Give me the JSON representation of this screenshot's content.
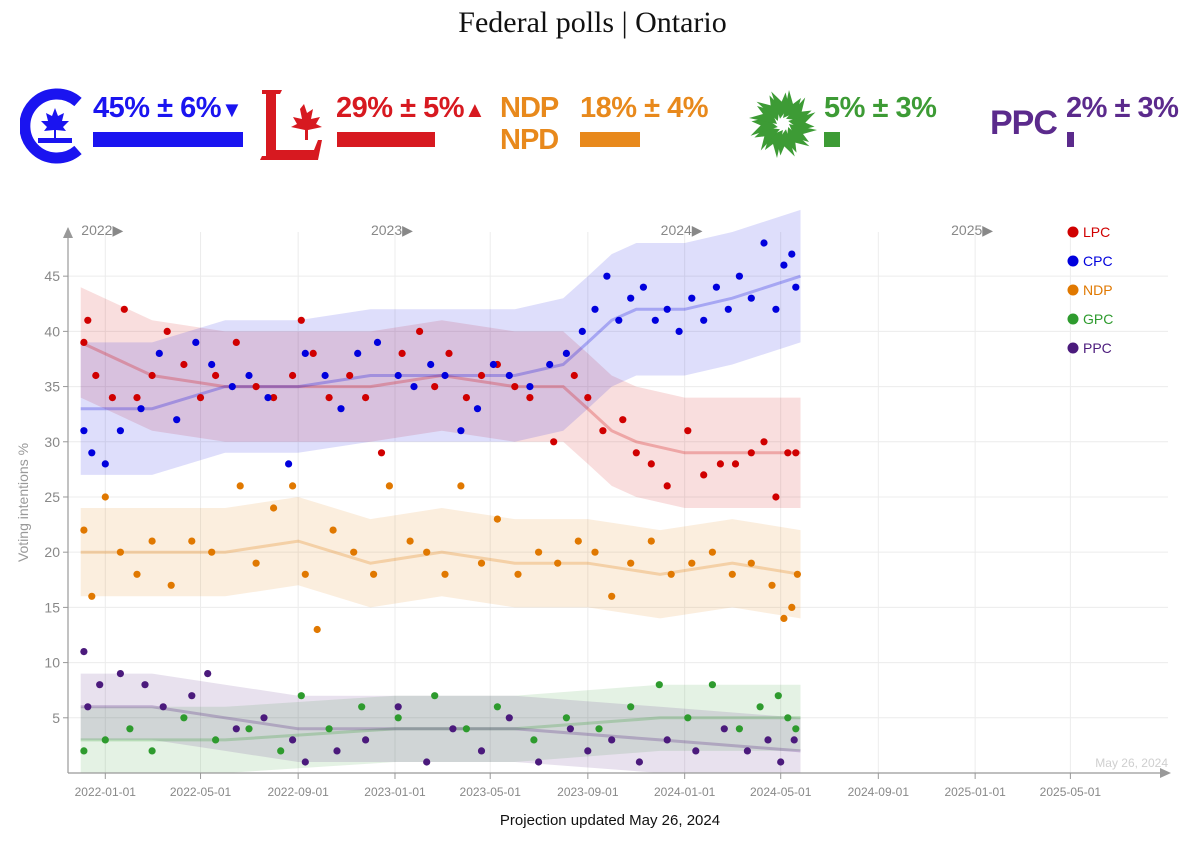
{
  "title": "Federal polls | Ontario",
  "parties": [
    {
      "id": "cpc",
      "label": "45% ± 6%",
      "arrow": "▼",
      "color": "#1a14f0",
      "share": 45
    },
    {
      "id": "lpc",
      "label": "29% ± 5%",
      "arrow": "▲",
      "color": "#d71920",
      "share": 29
    },
    {
      "id": "ndp",
      "label": "18% ± 4%",
      "arrow": "",
      "color": "#e8891c",
      "share": 18,
      "logo_line1": "NDP",
      "logo_line2": "NPD"
    },
    {
      "id": "gpc",
      "label": "5% ± 3%",
      "arrow": "",
      "color": "#3d9b35",
      "share": 5
    },
    {
      "id": "ppc",
      "label": "2% ± 3%",
      "arrow": "",
      "color": "#5b2a8c",
      "share": 2,
      "logo_text": "PPC"
    }
  ],
  "footer": "Projection updated May 26, 2024",
  "chart_data": {
    "type": "scatter",
    "title": "Federal polls | Ontario",
    "ylabel": "Voting intentions %",
    "xlim": [
      "2021-11-15",
      "2025-09-01"
    ],
    "ylim": [
      0,
      49
    ],
    "y_ticks": [
      5,
      10,
      15,
      20,
      25,
      30,
      35,
      40,
      45
    ],
    "x_ticks": [
      "2022-01-01",
      "2022-05-01",
      "2022-09-01",
      "2023-01-01",
      "2023-05-01",
      "2023-09-01",
      "2024-01-01",
      "2024-05-01",
      "2024-09-01",
      "2025-01-01",
      "2025-05-01"
    ],
    "year_labels": [
      {
        "label": "2022",
        "date": "2022-01-01"
      },
      {
        "label": "2023",
        "date": "2023-01-01"
      },
      {
        "label": "2024",
        "date": "2024-01-01"
      },
      {
        "label": "2025",
        "date": "2025-01-01"
      }
    ],
    "watermark": "May 26, 2024",
    "legend_position": "top-right",
    "series": [
      {
        "name": "LPC",
        "color": "#d00000",
        "trend": [
          [
            "2021-12-01",
            39
          ],
          [
            "2022-03-01",
            36
          ],
          [
            "2022-06-01",
            35
          ],
          [
            "2022-09-01",
            35
          ],
          [
            "2022-12-01",
            35
          ],
          [
            "2023-03-01",
            36
          ],
          [
            "2023-06-01",
            35
          ],
          [
            "2023-08-01",
            35
          ],
          [
            "2023-09-01",
            33
          ],
          [
            "2023-10-01",
            31
          ],
          [
            "2023-11-01",
            30
          ],
          [
            "2024-01-01",
            29
          ],
          [
            "2024-03-01",
            29
          ],
          [
            "2024-05-26",
            29
          ]
        ],
        "band": 5,
        "points": [
          [
            "2021-12-05",
            39
          ],
          [
            "2021-12-10",
            41
          ],
          [
            "2021-12-20",
            36
          ],
          [
            "2022-01-10",
            34
          ],
          [
            "2022-01-25",
            42
          ],
          [
            "2022-02-10",
            34
          ],
          [
            "2022-03-01",
            36
          ],
          [
            "2022-03-20",
            40
          ],
          [
            "2022-04-10",
            37
          ],
          [
            "2022-05-01",
            34
          ],
          [
            "2022-05-20",
            36
          ],
          [
            "2022-06-15",
            39
          ],
          [
            "2022-07-10",
            35
          ],
          [
            "2022-08-01",
            34
          ],
          [
            "2022-08-25",
            36
          ],
          [
            "2022-09-05",
            41
          ],
          [
            "2022-09-20",
            38
          ],
          [
            "2022-10-10",
            34
          ],
          [
            "2022-11-05",
            36
          ],
          [
            "2022-11-25",
            34
          ],
          [
            "2022-12-15",
            29
          ],
          [
            "2023-01-10",
            38
          ],
          [
            "2023-02-01",
            40
          ],
          [
            "2023-02-20",
            35
          ],
          [
            "2023-03-10",
            38
          ],
          [
            "2023-04-01",
            34
          ],
          [
            "2023-04-20",
            36
          ],
          [
            "2023-05-10",
            37
          ],
          [
            "2023-06-01",
            35
          ],
          [
            "2023-06-20",
            34
          ],
          [
            "2023-07-20",
            30
          ],
          [
            "2023-08-15",
            36
          ],
          [
            "2023-09-01",
            34
          ],
          [
            "2023-09-20",
            31
          ],
          [
            "2023-10-15",
            32
          ],
          [
            "2023-11-01",
            29
          ],
          [
            "2023-11-20",
            28
          ],
          [
            "2023-12-10",
            26
          ],
          [
            "2024-01-05",
            31
          ],
          [
            "2024-01-25",
            27
          ],
          [
            "2024-02-15",
            28
          ],
          [
            "2024-03-05",
            28
          ],
          [
            "2024-03-25",
            29
          ],
          [
            "2024-04-10",
            30
          ],
          [
            "2024-04-25",
            25
          ],
          [
            "2024-05-10",
            29
          ],
          [
            "2024-05-20",
            29
          ]
        ]
      },
      {
        "name": "CPC",
        "color": "#0000dd",
        "trend": [
          [
            "2021-12-01",
            33
          ],
          [
            "2022-03-01",
            33
          ],
          [
            "2022-06-01",
            35
          ],
          [
            "2022-09-01",
            35
          ],
          [
            "2022-12-01",
            36
          ],
          [
            "2023-03-01",
            36
          ],
          [
            "2023-06-01",
            36
          ],
          [
            "2023-08-01",
            37
          ],
          [
            "2023-09-01",
            39
          ],
          [
            "2023-10-01",
            41
          ],
          [
            "2023-11-01",
            42
          ],
          [
            "2024-01-01",
            42
          ],
          [
            "2024-03-01",
            43
          ],
          [
            "2024-05-26",
            45
          ]
        ],
        "band": 6,
        "points": [
          [
            "2021-12-05",
            31
          ],
          [
            "2021-12-15",
            29
          ],
          [
            "2022-01-01",
            28
          ],
          [
            "2022-01-20",
            31
          ],
          [
            "2022-02-15",
            33
          ],
          [
            "2022-03-10",
            38
          ],
          [
            "2022-04-01",
            32
          ],
          [
            "2022-04-25",
            39
          ],
          [
            "2022-05-15",
            37
          ],
          [
            "2022-06-10",
            35
          ],
          [
            "2022-07-01",
            36
          ],
          [
            "2022-07-25",
            34
          ],
          [
            "2022-08-20",
            28
          ],
          [
            "2022-09-10",
            38
          ],
          [
            "2022-10-05",
            36
          ],
          [
            "2022-10-25",
            33
          ],
          [
            "2022-11-15",
            38
          ],
          [
            "2022-12-10",
            39
          ],
          [
            "2023-01-05",
            36
          ],
          [
            "2023-01-25",
            35
          ],
          [
            "2023-02-15",
            37
          ],
          [
            "2023-03-05",
            36
          ],
          [
            "2023-03-25",
            31
          ],
          [
            "2023-04-15",
            33
          ],
          [
            "2023-05-05",
            37
          ],
          [
            "2023-05-25",
            36
          ],
          [
            "2023-06-20",
            35
          ],
          [
            "2023-07-15",
            37
          ],
          [
            "2023-08-05",
            38
          ],
          [
            "2023-08-25",
            40
          ],
          [
            "2023-09-10",
            42
          ],
          [
            "2023-09-25",
            45
          ],
          [
            "2023-10-10",
            41
          ],
          [
            "2023-10-25",
            43
          ],
          [
            "2023-11-10",
            44
          ],
          [
            "2023-11-25",
            41
          ],
          [
            "2023-12-10",
            42
          ],
          [
            "2023-12-25",
            40
          ],
          [
            "2024-01-10",
            43
          ],
          [
            "2024-01-25",
            41
          ],
          [
            "2024-02-10",
            44
          ],
          [
            "2024-02-25",
            42
          ],
          [
            "2024-03-10",
            45
          ],
          [
            "2024-03-25",
            43
          ],
          [
            "2024-04-10",
            48
          ],
          [
            "2024-04-25",
            42
          ],
          [
            "2024-05-05",
            46
          ],
          [
            "2024-05-15",
            47
          ],
          [
            "2024-05-20",
            44
          ]
        ]
      },
      {
        "name": "NDP",
        "color": "#e07800",
        "trend": [
          [
            "2021-12-01",
            20
          ],
          [
            "2022-03-01",
            20
          ],
          [
            "2022-06-01",
            20
          ],
          [
            "2022-09-01",
            21
          ],
          [
            "2022-12-01",
            19
          ],
          [
            "2023-03-01",
            20
          ],
          [
            "2023-06-01",
            19
          ],
          [
            "2023-09-01",
            19
          ],
          [
            "2023-12-01",
            18
          ],
          [
            "2024-03-01",
            19
          ],
          [
            "2024-05-26",
            18
          ]
        ],
        "band": 4,
        "points": [
          [
            "2021-12-05",
            22
          ],
          [
            "2021-12-15",
            16
          ],
          [
            "2022-01-01",
            25
          ],
          [
            "2022-01-20",
            20
          ],
          [
            "2022-02-10",
            18
          ],
          [
            "2022-03-01",
            21
          ],
          [
            "2022-03-25",
            17
          ],
          [
            "2022-04-20",
            21
          ],
          [
            "2022-05-15",
            20
          ],
          [
            "2022-06-20",
            26
          ],
          [
            "2022-07-10",
            19
          ],
          [
            "2022-08-01",
            24
          ],
          [
            "2022-08-25",
            26
          ],
          [
            "2022-09-10",
            18
          ],
          [
            "2022-09-25",
            13
          ],
          [
            "2022-10-15",
            22
          ],
          [
            "2022-11-10",
            20
          ],
          [
            "2022-12-05",
            18
          ],
          [
            "2022-12-25",
            26
          ],
          [
            "2023-01-20",
            21
          ],
          [
            "2023-02-10",
            20
          ],
          [
            "2023-03-05",
            18
          ],
          [
            "2023-03-25",
            26
          ],
          [
            "2023-04-20",
            19
          ],
          [
            "2023-05-10",
            23
          ],
          [
            "2023-06-05",
            18
          ],
          [
            "2023-07-01",
            20
          ],
          [
            "2023-07-25",
            19
          ],
          [
            "2023-08-20",
            21
          ],
          [
            "2023-09-10",
            20
          ],
          [
            "2023-10-01",
            16
          ],
          [
            "2023-10-25",
            19
          ],
          [
            "2023-11-20",
            21
          ],
          [
            "2023-12-15",
            18
          ],
          [
            "2024-01-10",
            19
          ],
          [
            "2024-02-05",
            20
          ],
          [
            "2024-03-01",
            18
          ],
          [
            "2024-03-25",
            19
          ],
          [
            "2024-04-20",
            17
          ],
          [
            "2024-05-05",
            14
          ],
          [
            "2024-05-15",
            15
          ],
          [
            "2024-05-22",
            18
          ]
        ]
      },
      {
        "name": "GPC",
        "color": "#2e9b2e",
        "trend": [
          [
            "2021-12-01",
            3
          ],
          [
            "2022-06-01",
            3
          ],
          [
            "2023-01-01",
            4
          ],
          [
            "2023-06-01",
            4
          ],
          [
            "2023-12-01",
            5
          ],
          [
            "2024-05-26",
            5
          ]
        ],
        "band": 3,
        "points": [
          [
            "2021-12-05",
            2
          ],
          [
            "2022-01-01",
            3
          ],
          [
            "2022-02-01",
            4
          ],
          [
            "2022-03-01",
            2
          ],
          [
            "2022-04-10",
            5
          ],
          [
            "2022-05-20",
            3
          ],
          [
            "2022-07-01",
            4
          ],
          [
            "2022-08-10",
            2
          ],
          [
            "2022-09-05",
            7
          ],
          [
            "2022-10-10",
            4
          ],
          [
            "2022-11-20",
            6
          ],
          [
            "2023-01-05",
            5
          ],
          [
            "2023-02-20",
            7
          ],
          [
            "2023-04-01",
            4
          ],
          [
            "2023-05-10",
            6
          ],
          [
            "2023-06-25",
            3
          ],
          [
            "2023-08-05",
            5
          ],
          [
            "2023-09-15",
            4
          ],
          [
            "2023-10-25",
            6
          ],
          [
            "2023-11-30",
            8
          ],
          [
            "2024-01-05",
            5
          ],
          [
            "2024-02-05",
            8
          ],
          [
            "2024-03-10",
            4
          ],
          [
            "2024-04-05",
            6
          ],
          [
            "2024-04-28",
            7
          ],
          [
            "2024-05-10",
            5
          ],
          [
            "2024-05-20",
            4
          ]
        ]
      },
      {
        "name": "PPC",
        "color": "#4b1a7c",
        "trend": [
          [
            "2021-12-01",
            6
          ],
          [
            "2022-03-01",
            6
          ],
          [
            "2022-06-01",
            5
          ],
          [
            "2022-09-01",
            4
          ],
          [
            "2022-12-01",
            4
          ],
          [
            "2023-06-01",
            4
          ],
          [
            "2023-12-01",
            3
          ],
          [
            "2024-05-26",
            2
          ]
        ],
        "band": 3,
        "points": [
          [
            "2021-12-05",
            11
          ],
          [
            "2021-12-10",
            6
          ],
          [
            "2021-12-25",
            8
          ],
          [
            "2022-01-20",
            9
          ],
          [
            "2022-02-20",
            8
          ],
          [
            "2022-03-15",
            6
          ],
          [
            "2022-04-20",
            7
          ],
          [
            "2022-05-10",
            9
          ],
          [
            "2022-06-15",
            4
          ],
          [
            "2022-07-20",
            5
          ],
          [
            "2022-08-25",
            3
          ],
          [
            "2022-09-10",
            1
          ],
          [
            "2022-10-20",
            2
          ],
          [
            "2022-11-25",
            3
          ],
          [
            "2023-01-05",
            6
          ],
          [
            "2023-02-10",
            1
          ],
          [
            "2023-03-15",
            4
          ],
          [
            "2023-04-20",
            2
          ],
          [
            "2023-05-25",
            5
          ],
          [
            "2023-07-01",
            1
          ],
          [
            "2023-08-10",
            4
          ],
          [
            "2023-09-01",
            2
          ],
          [
            "2023-10-01",
            3
          ],
          [
            "2023-11-05",
            1
          ],
          [
            "2023-12-10",
            3
          ],
          [
            "2024-01-15",
            2
          ],
          [
            "2024-02-20",
            4
          ],
          [
            "2024-03-20",
            2
          ],
          [
            "2024-04-15",
            3
          ],
          [
            "2024-05-01",
            1
          ],
          [
            "2024-05-18",
            3
          ]
        ]
      }
    ]
  }
}
